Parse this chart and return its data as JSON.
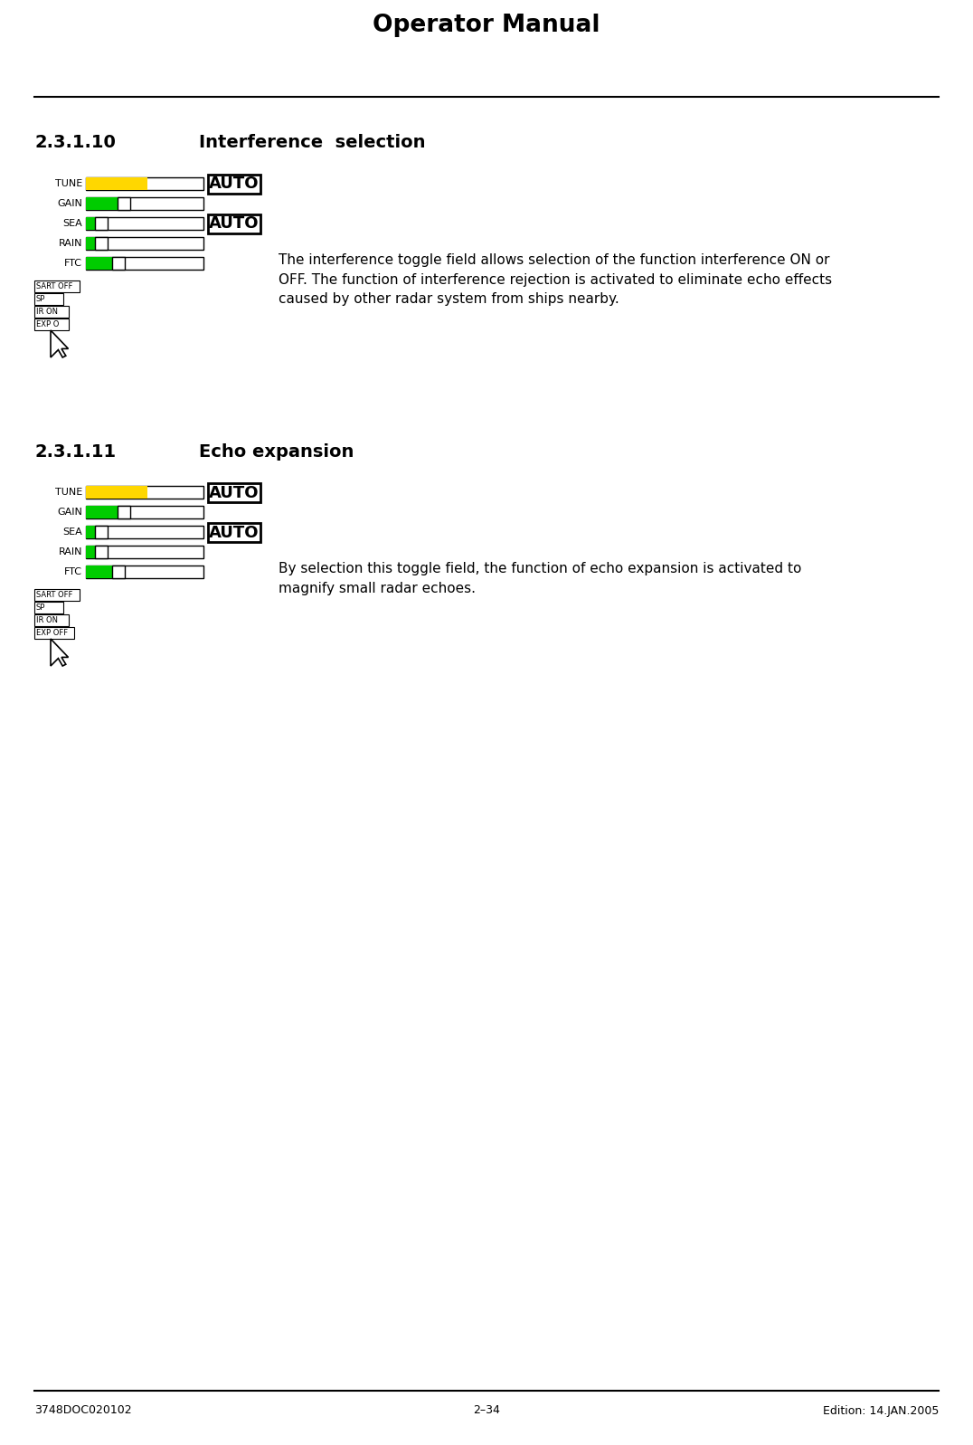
{
  "title": "Operator Manual",
  "section1_num": "2.3.1.10",
  "section1_title": "Interference  selection",
  "section2_num": "2.3.1.11",
  "section2_title": "Echo expansion",
  "section1_text": "The interference toggle field allows selection of the function interference ON or\nOFF. The function of interference rejection is activated to eliminate echo effects\ncaused by other radar system from ships nearby.",
  "section2_text": "By selection this toggle field, the function of echo expansion is activated to\nmagnify small radar echoes.",
  "footer_left": "3748DOC020102",
  "footer_center": "2–34",
  "footer_right": "Edition: 14.JAN.2005",
  "bg_color": "#ffffff",
  "text_color": "#000000",
  "yellow": "#FFD700",
  "green": "#00CC00"
}
